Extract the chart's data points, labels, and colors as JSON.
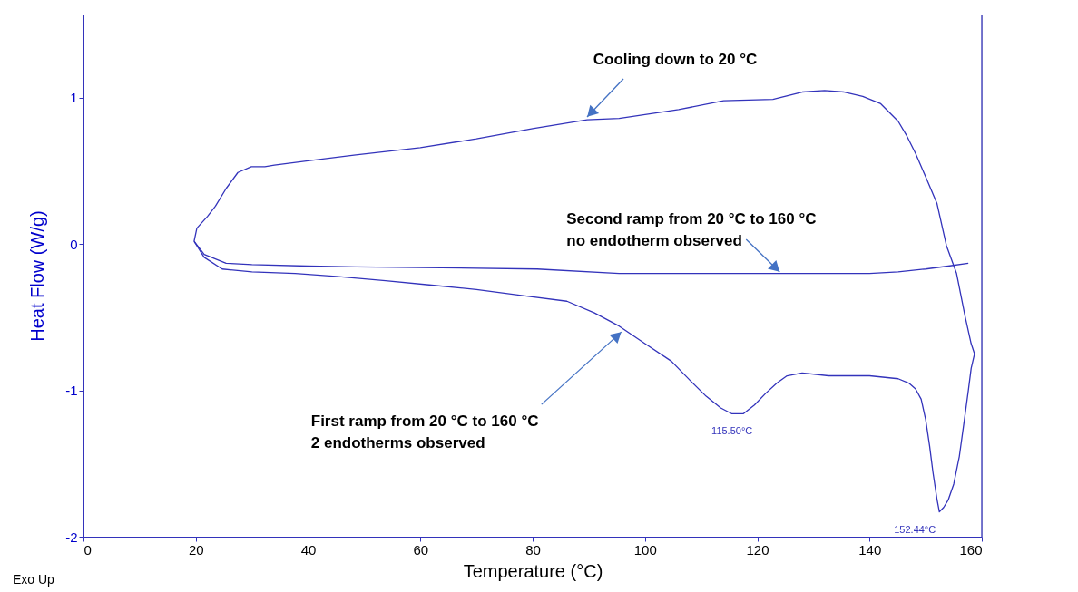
{
  "chart_data": {
    "type": "line",
    "xlabel": "Temperature (°C)",
    "ylabel": "Heat Flow (W/g)",
    "xlim": [
      0,
      160
    ],
    "xticks": [
      0,
      20,
      40,
      60,
      80,
      100,
      120,
      140,
      160
    ],
    "ylim": [
      -2,
      1.57
    ],
    "yticks": [
      {
        "value": -2,
        "label": "-2"
      },
      {
        "value": -1,
        "label": "-1"
      },
      {
        "value": 0,
        "label": "0"
      },
      {
        "value": 1,
        "label": "1"
      }
    ],
    "grid": false,
    "marker": "none",
    "line_style": "solid",
    "series": [
      {
        "color": "#3333bb",
        "x": [
          158.7,
          158.1,
          157,
          155.5,
          153.7,
          152,
          150,
          148.2,
          146.5,
          145.1,
          142,
          138.8,
          135.5,
          132,
          128,
          122.8,
          114,
          106,
          95.4,
          89.7,
          80,
          70,
          60,
          48.5,
          40,
          34,
          32.3,
          29.9,
          27.5,
          25.4,
          23.5,
          22.1,
          20.2,
          19.7
        ],
        "values": [
          -0.75,
          -0.68,
          -0.49,
          -0.2,
          -0.01,
          0.28,
          0.46,
          0.62,
          0.75,
          0.84,
          0.96,
          1.01,
          1.04,
          1.05,
          1.04,
          0.99,
          0.98,
          0.92,
          0.86,
          0.85,
          0.79,
          0.72,
          0.66,
          0.61,
          0.57,
          0.54,
          0.53,
          0.53,
          0.49,
          0.38,
          0.26,
          0.19,
          0.11,
          0.02
        ]
      },
      {
        "color": "#3333bb",
        "x": [
          19.7,
          21.5,
          24.7,
          30,
          37.7,
          45,
          53.8,
          62,
          70,
          78,
          86.1,
          91,
          95.4,
          100,
          104.7,
          108,
          110.9,
          113.5,
          115.5,
          117.5,
          119.5,
          121.5,
          123.5,
          125.3,
          128,
          132.7,
          140,
          145.1,
          147,
          148.2,
          149.2,
          150,
          150.7,
          151.3,
          152,
          152.44,
          153.2,
          154,
          155,
          156,
          156.9,
          157.6,
          158.1,
          158.7
        ],
        "values": [
          0.02,
          -0.09,
          -0.17,
          -0.19,
          -0.2,
          -0.22,
          -0.25,
          -0.28,
          -0.31,
          -0.35,
          -0.39,
          -0.47,
          -0.56,
          -0.68,
          -0.8,
          -0.93,
          -1.04,
          -1.12,
          -1.16,
          -1.16,
          -1.1,
          -1.02,
          -0.95,
          -0.9,
          -0.88,
          -0.9,
          -0.9,
          -0.92,
          -0.95,
          -0.99,
          -1.06,
          -1.2,
          -1.38,
          -1.56,
          -1.74,
          -1.83,
          -1.8,
          -1.75,
          -1.64,
          -1.45,
          -1.2,
          -1.0,
          -0.85,
          -0.75
        ]
      },
      {
        "color": "#3333bb",
        "x": [
          19.7,
          21.5,
          25.4,
          30,
          40,
          48.5,
          60,
          80.8,
          95.4,
          110,
          126.4,
          140,
          145.1,
          150,
          154,
          157.6
        ],
        "values": [
          0.02,
          -0.07,
          -0.13,
          -0.14,
          -0.15,
          -0.155,
          -0.16,
          -0.17,
          -0.2,
          -0.2,
          -0.2,
          -0.2,
          -0.19,
          -0.17,
          -0.15,
          -0.13
        ]
      }
    ],
    "annotations": [
      {
        "text": "Cooling down to 20 °C",
        "x": 89.7,
        "y": 0.87
      },
      {
        "text": "Second ramp from 20 °C to 160 °C\nno endotherm observed",
        "x": 124,
        "y": -0.19
      },
      {
        "text": "First ramp from 20 °C to 160 °C\n2 endotherms observed",
        "x": 95.8,
        "y": -0.6
      },
      {
        "text": "115.50°C",
        "x": 115.5,
        "y": -1.16
      },
      {
        "text": "152.44°C",
        "x": 152.44,
        "y": -1.83
      },
      "Exo Up"
    ]
  }
}
